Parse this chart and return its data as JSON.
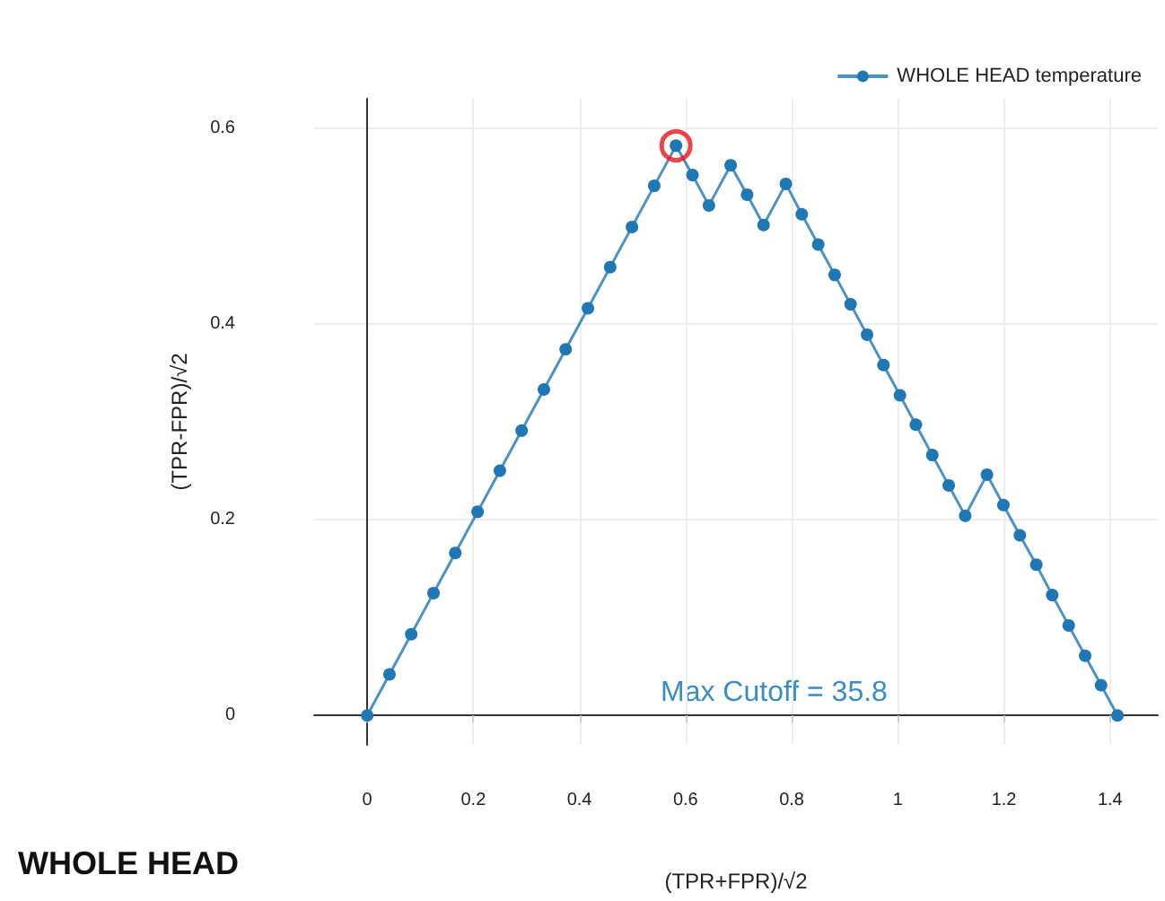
{
  "chart_data": {
    "type": "line",
    "title": "WHOLE HEAD",
    "xlabel": "(TPR+FPR)/√2",
    "ylabel": "(TPR-FPR)/√2",
    "x": [
      0,
      0.042,
      0.083,
      0.125,
      0.166,
      0.208,
      0.25,
      0.291,
      0.333,
      0.374,
      0.416,
      0.458,
      0.499,
      0.541,
      0.582,
      0.613,
      0.644,
      0.685,
      0.716,
      0.747,
      0.789,
      0.819,
      0.85,
      0.881,
      0.911,
      0.942,
      0.973,
      1.004,
      1.034,
      1.065,
      1.096,
      1.127,
      1.168,
      1.199,
      1.23,
      1.261,
      1.291,
      1.322,
      1.353,
      1.383,
      1.414
    ],
    "series": [
      {
        "name": "WHOLE HEAD temperature",
        "color": "#1f77b4",
        "values": [
          0,
          0.042,
          0.083,
          0.125,
          0.166,
          0.208,
          0.25,
          0.291,
          0.333,
          0.374,
          0.416,
          0.458,
          0.499,
          0.541,
          0.582,
          0.552,
          0.521,
          0.562,
          0.532,
          0.501,
          0.543,
          0.512,
          0.481,
          0.45,
          0.42,
          0.389,
          0.358,
          0.327,
          0.297,
          0.266,
          0.235,
          0.204,
          0.246,
          0.215,
          0.184,
          0.154,
          0.123,
          0.092,
          0.061,
          0.031,
          0
        ]
      },
      {
        "type": "scatter",
        "color": "#e8141c",
        "x": [
          0.582
        ],
        "values": [
          0.582
        ]
      }
    ],
    "annotations": [
      "Max Cutoff = 35.8"
    ],
    "xlim": [
      -0.1,
      1.49
    ],
    "ylim": [
      -0.03,
      0.63
    ],
    "xticks": [
      0,
      0.2,
      0.4,
      0.6,
      0.8,
      1,
      1.2,
      1.4
    ],
    "yticks": [
      0,
      0.2,
      0.4,
      0.6
    ],
    "grid": true,
    "legend": "top right",
    "marker": "circle",
    "line_style": "solid"
  }
}
